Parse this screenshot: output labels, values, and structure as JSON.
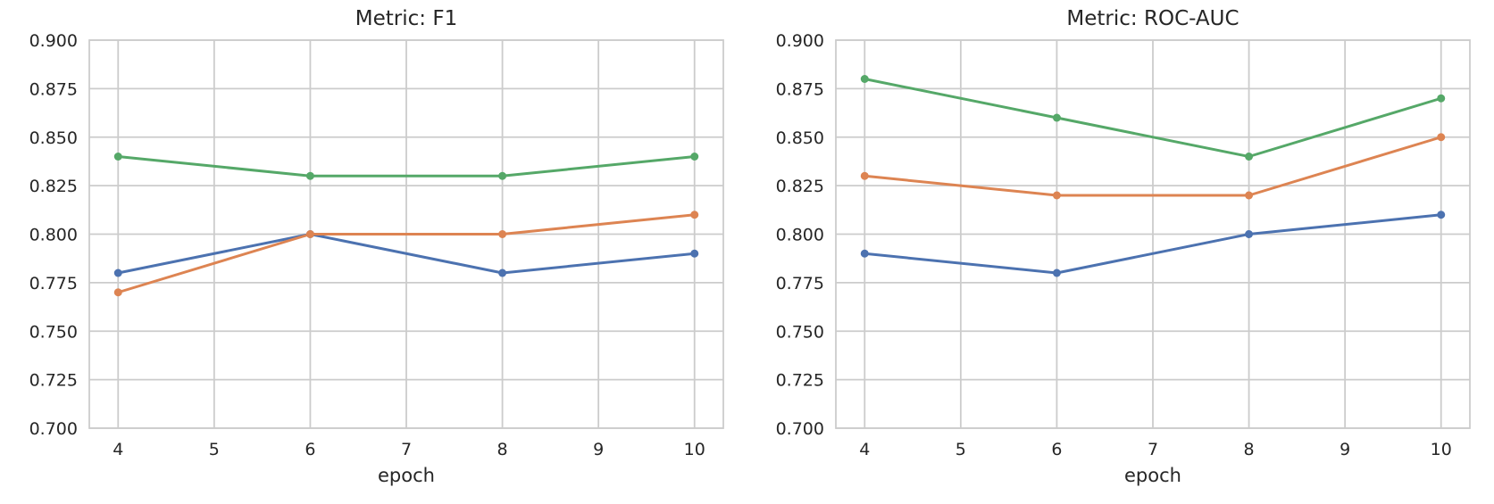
{
  "figure": {
    "background": "#ffffff",
    "text_color": "#262626",
    "grid_color": "#cccccc"
  },
  "chart_data": [
    {
      "type": "line",
      "title": "Metric: F1",
      "xlabel": "epoch",
      "ylabel": "",
      "grid": true,
      "legend": "none",
      "xlim": [
        3.7,
        10.3
      ],
      "ylim": [
        0.7,
        0.9
      ],
      "x_ticks": [
        "4",
        "5",
        "6",
        "7",
        "8",
        "9",
        "10"
      ],
      "y_ticks": [
        "0.900",
        "0.875",
        "0.850",
        "0.825",
        "0.800",
        "0.775",
        "0.750",
        "0.725",
        "0.700"
      ],
      "x": [
        4,
        6,
        8,
        10
      ],
      "series": [
        {
          "name": "blue",
          "color": "#4c72b0",
          "values": [
            0.78,
            0.8,
            0.78,
            0.79
          ]
        },
        {
          "name": "orange",
          "color": "#dd8452",
          "values": [
            0.77,
            0.8,
            0.8,
            0.81
          ]
        },
        {
          "name": "green",
          "color": "#55a868",
          "values": [
            0.84,
            0.83,
            0.83,
            0.84
          ]
        }
      ]
    },
    {
      "type": "line",
      "title": "Metric: ROC-AUC",
      "xlabel": "epoch",
      "ylabel": "",
      "grid": true,
      "legend": "none",
      "xlim": [
        3.7,
        10.3
      ],
      "ylim": [
        0.7,
        0.9
      ],
      "x_ticks": [
        "4",
        "5",
        "6",
        "7",
        "8",
        "9",
        "10"
      ],
      "y_ticks": [
        "0.900",
        "0.875",
        "0.850",
        "0.825",
        "0.800",
        "0.775",
        "0.750",
        "0.725",
        "0.700"
      ],
      "x": [
        4,
        6,
        8,
        10
      ],
      "series": [
        {
          "name": "blue",
          "color": "#4c72b0",
          "values": [
            0.79,
            0.78,
            0.8,
            0.81
          ]
        },
        {
          "name": "orange",
          "color": "#dd8452",
          "values": [
            0.83,
            0.82,
            0.82,
            0.85
          ]
        },
        {
          "name": "green",
          "color": "#55a868",
          "values": [
            0.88,
            0.86,
            0.84,
            0.87
          ]
        }
      ]
    }
  ]
}
